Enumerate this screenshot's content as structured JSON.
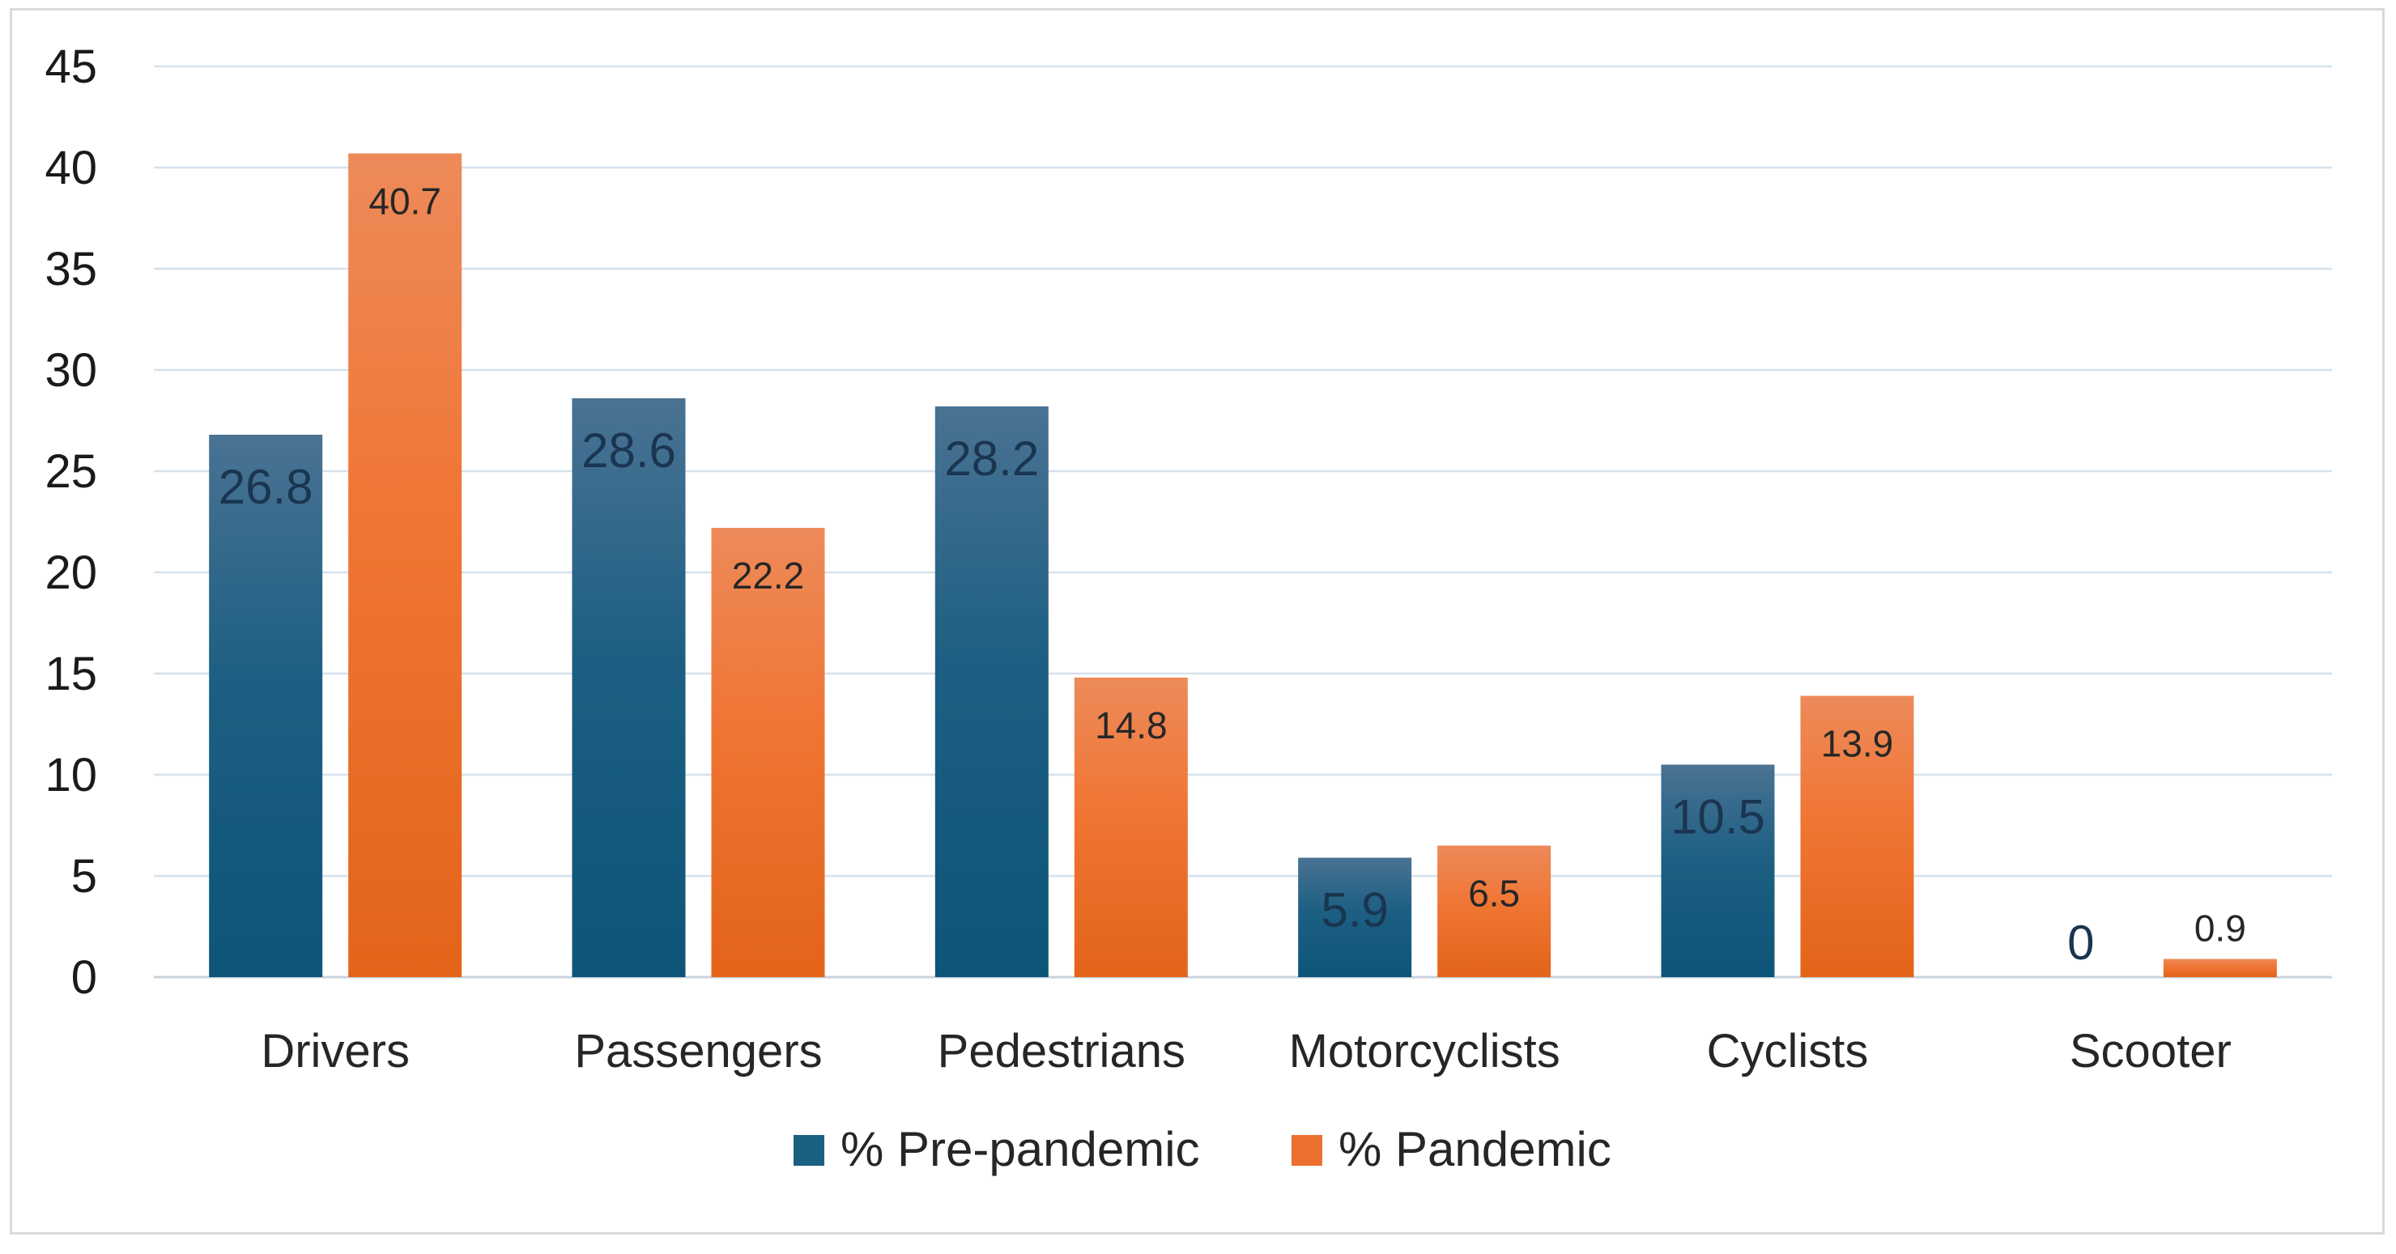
{
  "chart_data": {
    "type": "bar",
    "title": "",
    "xlabel": "",
    "ylabel": "",
    "ylim": [
      0,
      45
    ],
    "yticks": [
      0,
      5,
      10,
      15,
      20,
      25,
      30,
      35,
      40,
      45
    ],
    "ytick_labels": [
      "0",
      "5",
      "10",
      "15",
      "20",
      "25",
      "30",
      "35",
      "40",
      "45"
    ],
    "categories": [
      "Drivers",
      "Passengers",
      "Pedestrians",
      "Motorcyclists",
      "Cyclists",
      "Scooter"
    ],
    "series": [
      {
        "name": "% Pre-pandemic",
        "color": "#1a6080",
        "values": [
          26.8,
          28.6,
          28.2,
          5.9,
          10.5,
          0
        ],
        "labels": [
          "26.8",
          "28.6",
          "28.2",
          "5.9",
          "10.5",
          "0"
        ]
      },
      {
        "name": "% Pandemic",
        "color": "#ec7030",
        "values": [
          40.7,
          22.2,
          14.8,
          6.5,
          13.9,
          0.9
        ],
        "labels": [
          "40.7",
          "22.2",
          "14.8",
          "6.5",
          "13.9",
          "0.9"
        ]
      }
    ],
    "grid": true,
    "legend_position": "bottom"
  }
}
